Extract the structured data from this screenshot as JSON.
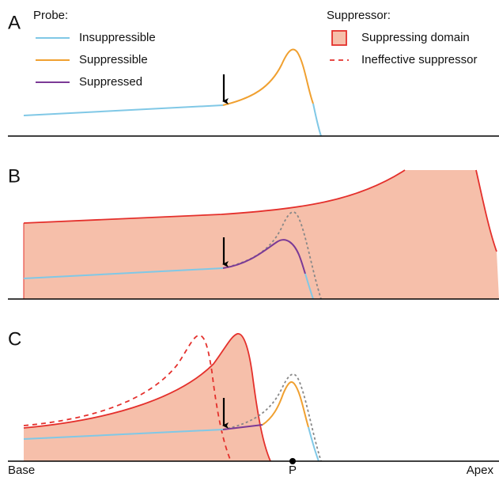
{
  "panel_labels": [
    "A",
    "B",
    "C"
  ],
  "legend": {
    "probe": {
      "title": "Probe:",
      "items": [
        "Insuppressible",
        "Suppressible",
        "Suppressed"
      ]
    },
    "suppressor": {
      "title": "Suppressor:",
      "items": [
        "Suppressing domain",
        "Ineffective suppressor"
      ]
    }
  },
  "axis": {
    "left": "Base",
    "middle": "P",
    "right": "Apex"
  }
}
